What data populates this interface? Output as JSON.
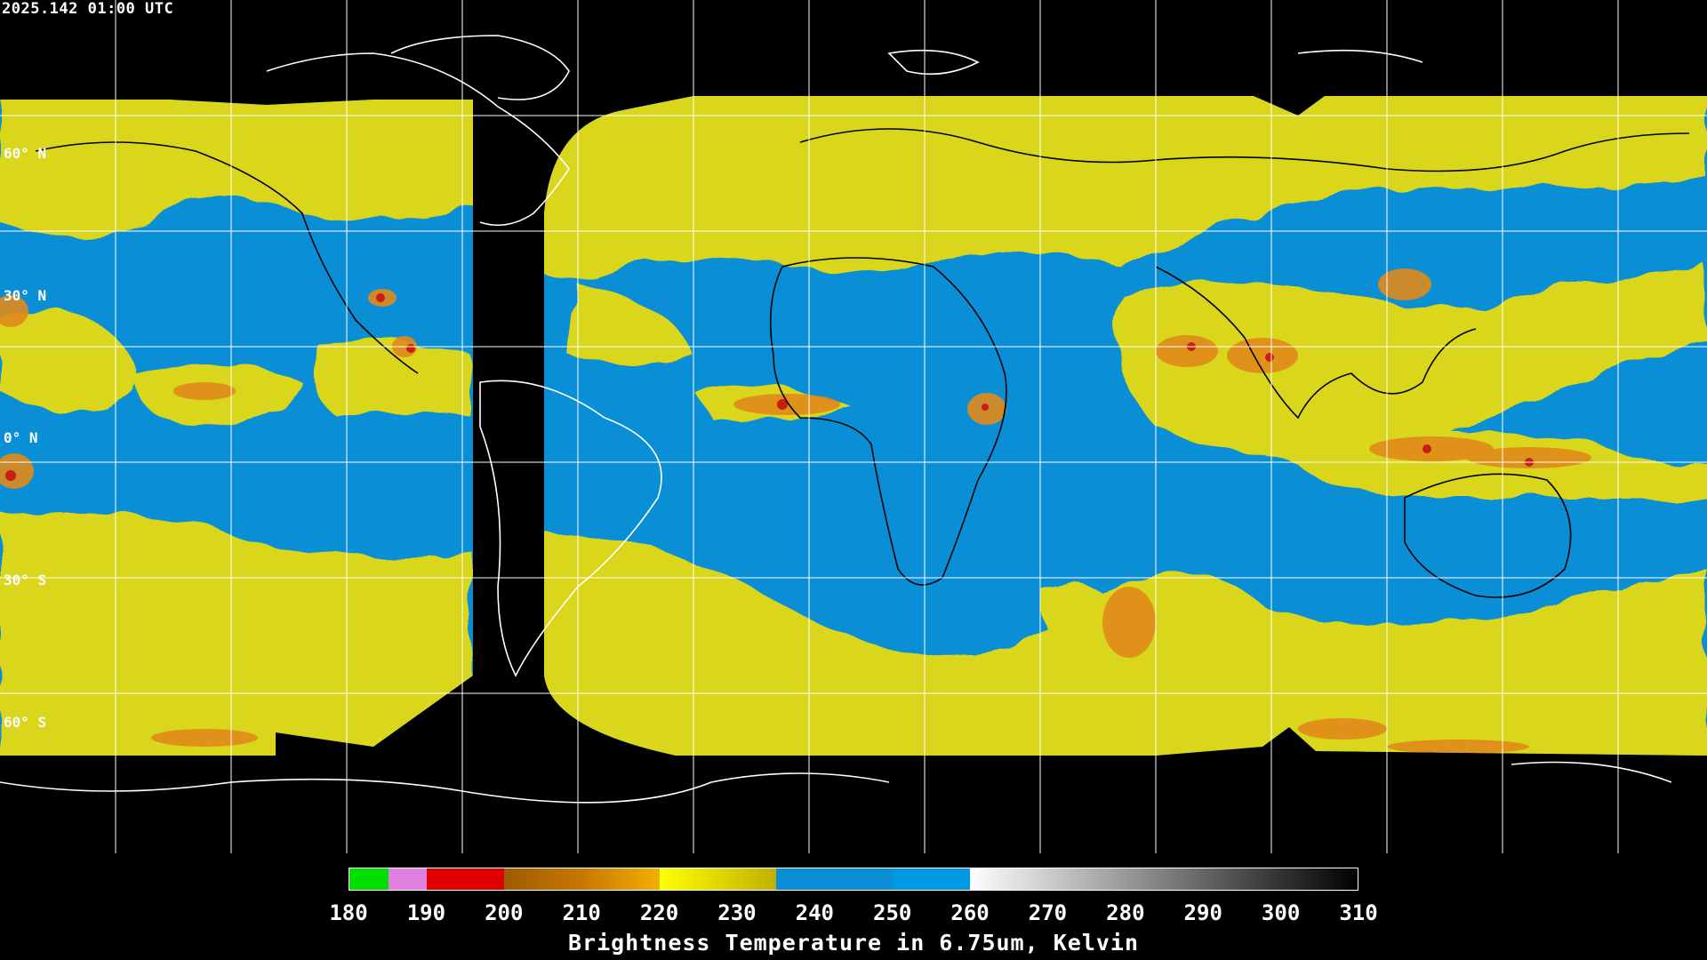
{
  "header": {
    "timestamp": "2025.142 01:00 UTC"
  },
  "map": {
    "lat_labels": [
      "60° N",
      "30° N",
      "0° N",
      "30° S",
      "60° S"
    ],
    "colors": {
      "background": "#000000",
      "humid": "#0a8fd6",
      "mid": "#d9d61a",
      "mid_light": "#e6e44a",
      "cold_orange": "#e08a1a",
      "cold_red": "#c81e14",
      "coastline": "#ffffff",
      "grid": "#ffffff"
    }
  },
  "colorbar": {
    "ticks": [
      "180",
      "190",
      "200",
      "210",
      "220",
      "230",
      "240",
      "250",
      "260",
      "270",
      "280",
      "290",
      "300",
      "310"
    ],
    "segments": [
      {
        "from": 180,
        "to": 185,
        "color": "#00e000"
      },
      {
        "from": 185,
        "to": 190,
        "color": "#e080e0"
      },
      {
        "from": 190,
        "to": 200,
        "color": "#e00000"
      },
      {
        "from": 200,
        "to": 210,
        "color": "gradient:#a05a00:#c87800"
      },
      {
        "from": 210,
        "to": 220,
        "color": "gradient:#c87800:#f0b000"
      },
      {
        "from": 220,
        "to": 235,
        "color": "gradient:#ffff00:#c0b000"
      },
      {
        "from": 235,
        "to": 250,
        "color": "#0a8fd6"
      },
      {
        "from": 250,
        "to": 260,
        "color": "#0099e6"
      },
      {
        "from": 260,
        "to": 310,
        "color": "gradient:#ffffff:#000000"
      }
    ],
    "title": "Brightness Temperature in 6.75um, Kelvin"
  }
}
